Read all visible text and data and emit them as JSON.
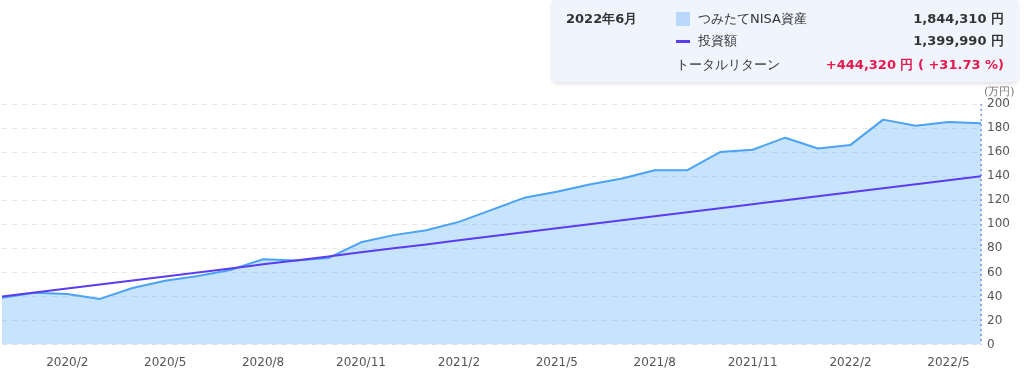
{
  "chart_data": {
    "type": "line",
    "x": [
      "2019-12",
      "2020-01",
      "2020-02",
      "2020-03",
      "2020-04",
      "2020-05",
      "2020-06",
      "2020-07",
      "2020-08",
      "2020-09",
      "2020-10",
      "2020-11",
      "2020-12",
      "2021-01",
      "2021-02",
      "2021-03",
      "2021-04",
      "2021-05",
      "2021-06",
      "2021-07",
      "2021-08",
      "2021-09",
      "2021-10",
      "2021-11",
      "2021-12",
      "2022-01",
      "2022-02",
      "2022-03",
      "2022-04",
      "2022-05",
      "2022-06"
    ],
    "series": [
      {
        "name": "つみたてNISA資産",
        "type": "area",
        "color": "#4aa3f5",
        "values": [
          39,
          43,
          42,
          38,
          47,
          53,
          57,
          62,
          71,
          70,
          72,
          85,
          91,
          95,
          102,
          112,
          122,
          127,
          133,
          138,
          145,
          145,
          160,
          162,
          172,
          163,
          166,
          187,
          182,
          185,
          184
        ]
      },
      {
        "name": "投資額",
        "color": "#5b3cf0",
        "values": [
          40.0,
          43.3,
          46.7,
          50.0,
          53.3,
          56.7,
          60.0,
          63.3,
          66.7,
          70.0,
          73.3,
          76.7,
          80.0,
          83.3,
          86.7,
          90.0,
          93.3,
          96.7,
          100.0,
          103.3,
          106.7,
          110.0,
          113.3,
          116.7,
          120.0,
          123.3,
          126.7,
          130.0,
          133.3,
          136.7,
          140.0
        ]
      }
    ],
    "xlim": [
      "2019-12",
      "2022-06"
    ],
    "xticks": [
      {
        "value": "2020-02",
        "label": "2020/2"
      },
      {
        "value": "2020-05",
        "label": "2020/5"
      },
      {
        "value": "2020-08",
        "label": "2020/8"
      },
      {
        "value": "2020-11",
        "label": "2020/11"
      },
      {
        "value": "2021-02",
        "label": "2021/2"
      },
      {
        "value": "2021-05",
        "label": "2021/5"
      },
      {
        "value": "2021-08",
        "label": "2021/8"
      },
      {
        "value": "2021-11",
        "label": "2021/11"
      },
      {
        "value": "2022-02",
        "label": "2022/2"
      },
      {
        "value": "2022-05",
        "label": "2022/5"
      }
    ],
    "ylim": [
      0,
      200
    ],
    "yticks": [
      0,
      20,
      40,
      60,
      80,
      100,
      120,
      140,
      160,
      180,
      200
    ],
    "ylabel": "(万円)",
    "grid": "y",
    "marker": "none",
    "legend": "top right",
    "ref_lines": [
      {
        "axis": "x",
        "value": "2022-06",
        "color": "#3a5fe0",
        "line_style": "dotted"
      }
    ],
    "annotations": [
      "2022年6月",
      "1,844,310 円",
      "1,399,990 円",
      "トータルリターン",
      "+444,320 円 ( +31.73 %)"
    ]
  }
}
